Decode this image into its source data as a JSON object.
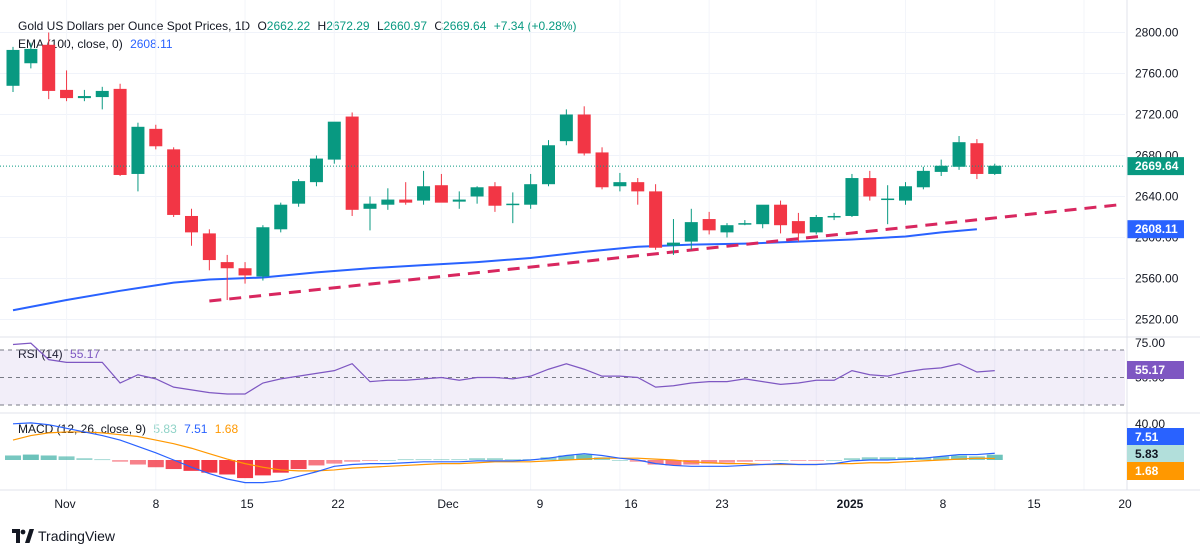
{
  "header": {
    "title": "Gold US Dollars per Ounce Spot Prices, 1D",
    "o_label": "O",
    "o": "2662.22",
    "h_label": "H",
    "h": "2672.29",
    "l_label": "L",
    "l": "2660.97",
    "c_label": "C",
    "c": "2669.64",
    "change": "+7.34 (+0.28%)",
    "ema_label": "EMA (100, close, 0)",
    "ema_value": "2608.11"
  },
  "rsi_header": {
    "label": "RSI (14)",
    "value": "55.17"
  },
  "macd_header": {
    "label": "MACD (12, 26, close, 9)",
    "hist": "5.83",
    "macd": "7.51",
    "signal": "1.68"
  },
  "brand": "TradingView",
  "colors": {
    "up": "#089981",
    "down": "#f23645",
    "ema": "#2962ff",
    "trend": "#d8275f",
    "rsi": "#7e57c2",
    "macd": "#2962ff",
    "signal": "#ff9800"
  },
  "chart_data": [
    {
      "type": "candlestick",
      "title": "Gold US Dollars per Ounce Spot Prices, 1D",
      "y_ticks": [
        "2520.00",
        "2560.00",
        "2600.00",
        "2640.00",
        "2680.00",
        "2720.00",
        "2760.00",
        "2800.00"
      ],
      "ylim": [
        2507,
        2825
      ],
      "x_ticks": [
        "Nov",
        "8",
        "15",
        "22",
        "Dec",
        "9",
        "16",
        "23",
        "2025",
        "8",
        "15",
        "20"
      ],
      "last_price_tag": "2669.64",
      "ema_tag": "2608.11",
      "candles": [
        {
          "o": 2748,
          "h": 2786,
          "l": 2742,
          "c": 2783
        },
        {
          "o": 2770,
          "h": 2790,
          "l": 2765,
          "c": 2784
        },
        {
          "o": 2788,
          "h": 2800,
          "l": 2735,
          "c": 2743
        },
        {
          "o": 2744,
          "h": 2763,
          "l": 2733,
          "c": 2736
        },
        {
          "o": 2736,
          "h": 2744,
          "l": 2733,
          "c": 2738
        },
        {
          "o": 2737,
          "h": 2747,
          "l": 2725,
          "c": 2743
        },
        {
          "o": 2745,
          "h": 2750,
          "l": 2660,
          "c": 2661
        },
        {
          "o": 2662,
          "h": 2712,
          "l": 2645,
          "c": 2708
        },
        {
          "o": 2706,
          "h": 2710,
          "l": 2686,
          "c": 2689
        },
        {
          "o": 2686,
          "h": 2688,
          "l": 2620,
          "c": 2622
        },
        {
          "o": 2621,
          "h": 2628,
          "l": 2592,
          "c": 2605
        },
        {
          "o": 2604,
          "h": 2608,
          "l": 2568,
          "c": 2578
        },
        {
          "o": 2576,
          "h": 2583,
          "l": 2539,
          "c": 2570
        },
        {
          "o": 2570,
          "h": 2576,
          "l": 2555,
          "c": 2563
        },
        {
          "o": 2562,
          "h": 2612,
          "l": 2558,
          "c": 2610
        },
        {
          "o": 2608,
          "h": 2634,
          "l": 2605,
          "c": 2632
        },
        {
          "o": 2633,
          "h": 2657,
          "l": 2630,
          "c": 2655
        },
        {
          "o": 2654,
          "h": 2680,
          "l": 2650,
          "c": 2677
        },
        {
          "o": 2676,
          "h": 2712,
          "l": 2672,
          "c": 2713
        },
        {
          "o": 2718,
          "h": 2722,
          "l": 2621,
          "c": 2627
        },
        {
          "o": 2628,
          "h": 2640,
          "l": 2607,
          "c": 2633
        },
        {
          "o": 2632,
          "h": 2648,
          "l": 2627,
          "c": 2637
        },
        {
          "o": 2637,
          "h": 2654,
          "l": 2632,
          "c": 2634
        },
        {
          "o": 2636,
          "h": 2665,
          "l": 2632,
          "c": 2650
        },
        {
          "o": 2651,
          "h": 2662,
          "l": 2636,
          "c": 2634
        },
        {
          "o": 2635,
          "h": 2645,
          "l": 2628,
          "c": 2637
        },
        {
          "o": 2640,
          "h": 2650,
          "l": 2633,
          "c": 2649
        },
        {
          "o": 2650,
          "h": 2654,
          "l": 2625,
          "c": 2631
        },
        {
          "o": 2633,
          "h": 2644,
          "l": 2614,
          "c": 2633
        },
        {
          "o": 2632,
          "h": 2662,
          "l": 2628,
          "c": 2652
        },
        {
          "o": 2652,
          "h": 2695,
          "l": 2650,
          "c": 2690
        },
        {
          "o": 2694,
          "h": 2725,
          "l": 2690,
          "c": 2720
        },
        {
          "o": 2720,
          "h": 2728,
          "l": 2680,
          "c": 2682
        },
        {
          "o": 2683,
          "h": 2688,
          "l": 2647,
          "c": 2649
        },
        {
          "o": 2650,
          "h": 2663,
          "l": 2645,
          "c": 2654
        },
        {
          "o": 2654,
          "h": 2658,
          "l": 2632,
          "c": 2645
        },
        {
          "o": 2645,
          "h": 2652,
          "l": 2588,
          "c": 2590
        },
        {
          "o": 2592,
          "h": 2618,
          "l": 2583,
          "c": 2595
        },
        {
          "o": 2596,
          "h": 2628,
          "l": 2588,
          "c": 2615
        },
        {
          "o": 2618,
          "h": 2625,
          "l": 2603,
          "c": 2607
        },
        {
          "o": 2605,
          "h": 2614,
          "l": 2600,
          "c": 2612
        },
        {
          "o": 2614,
          "h": 2617,
          "l": 2612,
          "c": 2614
        },
        {
          "o": 2613,
          "h": 2630,
          "l": 2609,
          "c": 2632
        },
        {
          "o": 2632,
          "h": 2636,
          "l": 2604,
          "c": 2612
        },
        {
          "o": 2616,
          "h": 2624,
          "l": 2596,
          "c": 2604
        },
        {
          "o": 2605,
          "h": 2622,
          "l": 2603,
          "c": 2620
        },
        {
          "o": 2620,
          "h": 2624,
          "l": 2617,
          "c": 2621
        },
        {
          "o": 2621,
          "h": 2662,
          "l": 2620,
          "c": 2658
        },
        {
          "o": 2658,
          "h": 2665,
          "l": 2636,
          "c": 2640
        },
        {
          "o": 2638,
          "h": 2651,
          "l": 2613,
          "c": 2638
        },
        {
          "o": 2636,
          "h": 2654,
          "l": 2632,
          "c": 2650
        },
        {
          "o": 2649,
          "h": 2669,
          "l": 2647,
          "c": 2665
        },
        {
          "o": 2664,
          "h": 2676,
          "l": 2660,
          "c": 2670
        },
        {
          "o": 2669,
          "h": 2699,
          "l": 2666,
          "c": 2693
        },
        {
          "o": 2692,
          "h": 2696,
          "l": 2657,
          "c": 2662
        },
        {
          "o": 2662,
          "h": 2672,
          "l": 2661,
          "c": 2670
        }
      ],
      "ema100": [
        [
          0,
          2529
        ],
        [
          3,
          2539
        ],
        [
          6,
          2548
        ],
        [
          9,
          2556
        ],
        [
          11,
          2559
        ],
        [
          14,
          2561
        ],
        [
          17,
          2566
        ],
        [
          20,
          2570
        ],
        [
          23,
          2573
        ],
        [
          26,
          2576
        ],
        [
          29,
          2580
        ],
        [
          32,
          2586
        ],
        [
          35,
          2591
        ],
        [
          38,
          2593
        ],
        [
          41,
          2594
        ],
        [
          44,
          2596
        ],
        [
          47,
          2598
        ],
        [
          50,
          2601
        ],
        [
          52,
          2605
        ],
        [
          54,
          2608
        ]
      ],
      "trendline": [
        [
          11,
          2538
        ],
        [
          62,
          2632
        ]
      ]
    },
    {
      "type": "line",
      "title": "RSI (14)",
      "value_tag": "55.17",
      "y_ticks": [
        "75.00",
        "50.00"
      ],
      "bands": [
        70,
        50,
        30
      ],
      "values": [
        74,
        75,
        63,
        61,
        61,
        61,
        46,
        52,
        49,
        43,
        41,
        39,
        38,
        38,
        46,
        49,
        51,
        53,
        55,
        60,
        47,
        48,
        48,
        49,
        50,
        48,
        50,
        50,
        49,
        51,
        56,
        60,
        56,
        51,
        51,
        50,
        43,
        44,
        46,
        47,
        47,
        49,
        47,
        45,
        46,
        48,
        48,
        55,
        52,
        51,
        54,
        56,
        57,
        60,
        54,
        55
      ]
    },
    {
      "type": "line",
      "title": "MACD (12, 26, close, 9)",
      "y_ticks": [
        "40.00"
      ],
      "macd_tag": "7.51",
      "hist_tag": "5.83",
      "signal_tag": "1.68",
      "macd": [
        40,
        41,
        39,
        35,
        31,
        27,
        22,
        15,
        8,
        0,
        -8,
        -15,
        -21,
        -25,
        -25,
        -23,
        -18,
        -13,
        -7,
        -5,
        -4,
        -4,
        -3,
        -2,
        -2,
        -2,
        -1,
        -1,
        -1,
        0,
        2,
        5,
        7,
        5,
        2,
        0,
        -4,
        -6,
        -7,
        -7,
        -7,
        -6,
        -5,
        -4,
        -5,
        -5,
        -4,
        -1,
        0,
        0,
        1,
        2,
        4,
        6,
        6,
        7.5
      ],
      "signal": [
        22,
        27,
        30,
        31,
        31,
        30,
        28,
        26,
        22,
        18,
        13,
        7,
        1,
        -4,
        -8,
        -11,
        -12,
        -12,
        -11,
        -9,
        -8,
        -7,
        -6,
        -5,
        -4,
        -4,
        -3,
        -2,
        -2,
        -2,
        -1,
        0,
        1,
        2,
        2,
        2,
        1,
        0,
        -2,
        -3,
        -4,
        -4,
        -5,
        -5,
        -5,
        -5,
        -4,
        -4,
        -3,
        -3,
        -2,
        -1,
        0,
        1,
        2,
        1.68
      ],
      "histogram": [
        5,
        6,
        5,
        4,
        2,
        1,
        -2,
        -5,
        -8,
        -10,
        -12,
        -14,
        -16,
        -20,
        -17,
        -14,
        -10,
        -6,
        -4,
        -2,
        -1,
        0,
        1,
        1,
        1,
        1,
        2,
        2,
        1,
        1,
        3,
        5,
        6,
        3,
        0,
        -2,
        -5,
        -6,
        -5,
        -4,
        -3,
        -2,
        -1,
        0,
        -1,
        -1,
        0,
        2,
        3,
        3,
        3,
        3,
        4,
        5,
        4,
        5.83
      ]
    }
  ]
}
